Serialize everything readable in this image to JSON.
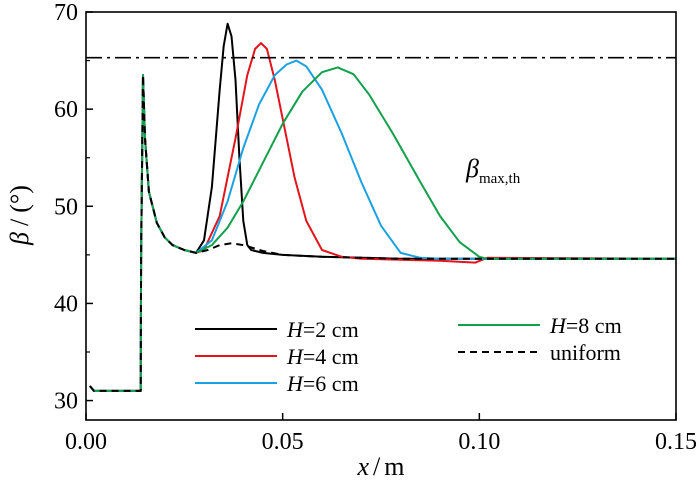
{
  "chart_data": {
    "type": "line",
    "xlabel_var": "x",
    "xlabel_unit": "m",
    "ylabel_var": "β",
    "ylabel_unit": "(°)",
    "xlim": [
      0,
      0.15
    ],
    "ylim": [
      28,
      70
    ],
    "xticks": [
      "0.00",
      "0.05",
      "0.10",
      "0.15"
    ],
    "xtick_values": [
      0,
      0.05,
      0.1,
      0.15
    ],
    "yticks": [
      "30",
      "40",
      "50",
      "60",
      "70"
    ],
    "ytick_values": [
      30,
      40,
      50,
      60,
      70
    ],
    "grid": false,
    "legend_placement": "bottom",
    "threshold": {
      "value": 65.3,
      "label_main": "β",
      "label_sub": "max,th",
      "color": "#000000",
      "style": "dash-dot"
    },
    "series": [
      {
        "name": "H=2 cm",
        "name_var": "H",
        "name_rest": "=2 cm",
        "color": "#000000",
        "dash": "solid",
        "x": [
          0.001,
          0.002,
          0.0139,
          0.014,
          0.0145,
          0.015,
          0.016,
          0.018,
          0.02,
          0.022,
          0.025,
          0.028,
          0.03,
          0.032,
          0.034,
          0.035,
          0.036,
          0.037,
          0.038,
          0.039,
          0.04,
          0.041,
          0.042,
          0.045,
          0.05,
          0.06,
          0.08,
          0.1,
          0.15
        ],
        "y": [
          31.5,
          31.0,
          31.0,
          45.0,
          63.5,
          57.0,
          51.5,
          48.3,
          46.8,
          46.0,
          45.5,
          45.2,
          46.5,
          52.0,
          62.0,
          66.5,
          68.8,
          67.5,
          63.0,
          55.0,
          48.5,
          46.0,
          45.5,
          45.2,
          45.0,
          44.8,
          44.6,
          44.6,
          44.6
        ]
      },
      {
        "name": "H=4 cm",
        "name_var": "H",
        "name_rest": "=4 cm",
        "color": "#e3141b",
        "dash": "solid",
        "x": [
          0.001,
          0.002,
          0.0139,
          0.014,
          0.0145,
          0.015,
          0.016,
          0.018,
          0.02,
          0.022,
          0.025,
          0.028,
          0.03,
          0.034,
          0.038,
          0.041,
          0.043,
          0.0445,
          0.046,
          0.048,
          0.05,
          0.053,
          0.056,
          0.06,
          0.065,
          0.07,
          0.08,
          0.09,
          0.099,
          0.102,
          0.15
        ],
        "y": [
          31.5,
          31.0,
          31.0,
          45.0,
          63.5,
          57.0,
          51.5,
          48.3,
          46.8,
          46.0,
          45.5,
          45.2,
          45.5,
          49.0,
          57.0,
          63.5,
          66.2,
          66.8,
          66.2,
          63.0,
          59.0,
          53.0,
          48.5,
          45.5,
          44.8,
          44.6,
          44.5,
          44.4,
          44.2,
          44.7,
          44.6
        ]
      },
      {
        "name": "H=6 cm",
        "name_var": "H",
        "name_rest": "=6 cm",
        "color": "#1ba1e2",
        "dash": "solid",
        "x": [
          0.001,
          0.002,
          0.0139,
          0.014,
          0.0145,
          0.015,
          0.016,
          0.018,
          0.02,
          0.022,
          0.025,
          0.028,
          0.032,
          0.036,
          0.04,
          0.044,
          0.048,
          0.051,
          0.0535,
          0.056,
          0.06,
          0.065,
          0.07,
          0.075,
          0.08,
          0.085,
          0.09,
          0.1,
          0.15
        ],
        "y": [
          31.5,
          31.0,
          31.0,
          45.0,
          63.5,
          57.0,
          51.5,
          48.3,
          46.8,
          46.0,
          45.5,
          45.2,
          46.5,
          50.5,
          56.0,
          60.5,
          63.5,
          64.6,
          65.0,
          64.4,
          62.0,
          57.5,
          52.5,
          48.0,
          45.2,
          44.7,
          44.6,
          44.6,
          44.6
        ]
      },
      {
        "name": "H=8 cm",
        "name_var": "H",
        "name_rest": "=8 cm",
        "color": "#12a14b",
        "dash": "solid",
        "x": [
          0.001,
          0.002,
          0.0139,
          0.014,
          0.0145,
          0.015,
          0.016,
          0.018,
          0.02,
          0.022,
          0.025,
          0.028,
          0.032,
          0.036,
          0.04,
          0.045,
          0.05,
          0.055,
          0.06,
          0.064,
          0.068,
          0.072,
          0.078,
          0.085,
          0.09,
          0.095,
          0.1,
          0.102,
          0.15
        ],
        "y": [
          31.5,
          31.0,
          31.0,
          45.0,
          63.5,
          57.0,
          51.5,
          48.3,
          46.8,
          46.0,
          45.5,
          45.2,
          46.0,
          47.8,
          50.5,
          54.5,
          58.5,
          61.8,
          63.8,
          64.3,
          63.6,
          61.5,
          57.5,
          52.5,
          49.0,
          46.3,
          44.8,
          44.6,
          44.6
        ]
      },
      {
        "name": "uniform",
        "name_var": "",
        "name_rest": "uniform",
        "color": "#000000",
        "dash": "dashed",
        "x": [
          0.001,
          0.002,
          0.0139,
          0.014,
          0.0145,
          0.015,
          0.016,
          0.018,
          0.02,
          0.022,
          0.025,
          0.028,
          0.031,
          0.034,
          0.037,
          0.04,
          0.045,
          0.05,
          0.06,
          0.08,
          0.1,
          0.15
        ],
        "y": [
          31.5,
          31.0,
          31.0,
          45.0,
          63.5,
          57.0,
          51.5,
          48.3,
          46.8,
          46.0,
          45.5,
          45.2,
          45.5,
          46.0,
          46.2,
          46.0,
          45.4,
          45.0,
          44.8,
          44.6,
          44.6,
          44.6
        ]
      }
    ]
  }
}
